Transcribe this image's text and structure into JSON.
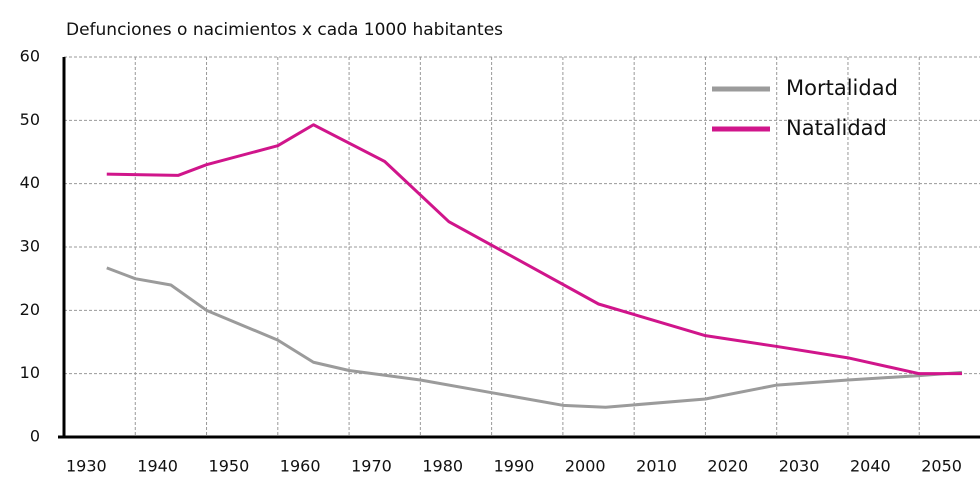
{
  "chart_data": {
    "type": "line",
    "title": "Defunciones o nacimientos x cada 1000 habitantes",
    "xlim": [
      1930,
      2056
    ],
    "ylim": [
      0,
      60
    ],
    "xticks": [
      1930,
      1940,
      1950,
      1960,
      1970,
      1980,
      1990,
      2000,
      2010,
      2020,
      2030,
      2040,
      2050
    ],
    "yticks": [
      0,
      10,
      20,
      30,
      40,
      50,
      60
    ],
    "grid": true,
    "legend": "upper right",
    "series": [
      {
        "name": "Mortalidad",
        "color": "#9b9b9b",
        "x": [
          1936,
          1940,
          1945,
          1950,
          1960,
          1965,
          1970,
          1980,
          1990,
          2000,
          2006,
          2020,
          2030,
          2040,
          2050,
          2056
        ],
        "values": [
          26.7,
          25,
          24,
          20,
          15.3,
          11.8,
          10.5,
          9,
          7,
          5,
          4.7,
          6,
          8.2,
          9,
          9.7,
          10.2
        ]
      },
      {
        "name": "Natalidad",
        "color": "#d0158b",
        "x": [
          1936,
          1946,
          1950,
          1960,
          1965,
          1975,
          1984,
          2005,
          2020,
          2030,
          2040,
          2050,
          2056
        ],
        "values": [
          41.5,
          41.3,
          43,
          46,
          49.3,
          43.5,
          34,
          21,
          16,
          14.3,
          12.5,
          10,
          10
        ]
      }
    ]
  }
}
